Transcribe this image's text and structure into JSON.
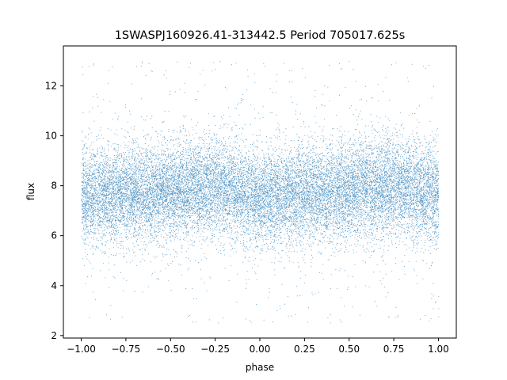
{
  "chart_data": {
    "type": "scatter",
    "title": "1SWASPJ160926.41-313442.5 Period 705017.625s",
    "xlabel": "phase",
    "ylabel": "flux",
    "xlim": [
      -1.1,
      1.1
    ],
    "ylim": [
      1.9,
      13.6
    ],
    "x_ticks": [
      -1.0,
      -0.75,
      -0.5,
      -0.25,
      0.0,
      0.25,
      0.5,
      0.75,
      1.0
    ],
    "x_tick_labels": [
      "−1.00",
      "−0.75",
      "−0.50",
      "−0.25",
      "0.00",
      "0.25",
      "0.50",
      "0.75",
      "1.00"
    ],
    "y_ticks": [
      2,
      4,
      6,
      8,
      10,
      12
    ],
    "y_tick_labels": [
      "2",
      "4",
      "6",
      "8",
      "10",
      "12"
    ],
    "grid": false,
    "legend": "none",
    "point_color": "#1f77b4",
    "series": [
      {
        "phase_range": [
          -1.0,
          1.0
        ],
        "flux_center": 7.7,
        "flux_typical_range": [
          6.0,
          9.8
        ],
        "flux_full_range": [
          2.5,
          13.0
        ],
        "point_count_estimate": 20000,
        "profile": [
          {
            "phase": -1.0,
            "flux": 7.6
          },
          {
            "phase": -0.75,
            "flux": 7.7
          },
          {
            "phase": -0.5,
            "flux": 7.8
          },
          {
            "phase": -0.25,
            "flux": 8.0
          },
          {
            "phase": 0.0,
            "flux": 7.5
          },
          {
            "phase": 0.25,
            "flux": 7.7
          },
          {
            "phase": 0.5,
            "flux": 7.8
          },
          {
            "phase": 0.75,
            "flux": 8.0
          },
          {
            "phase": 1.0,
            "flux": 7.6
          }
        ]
      }
    ]
  }
}
